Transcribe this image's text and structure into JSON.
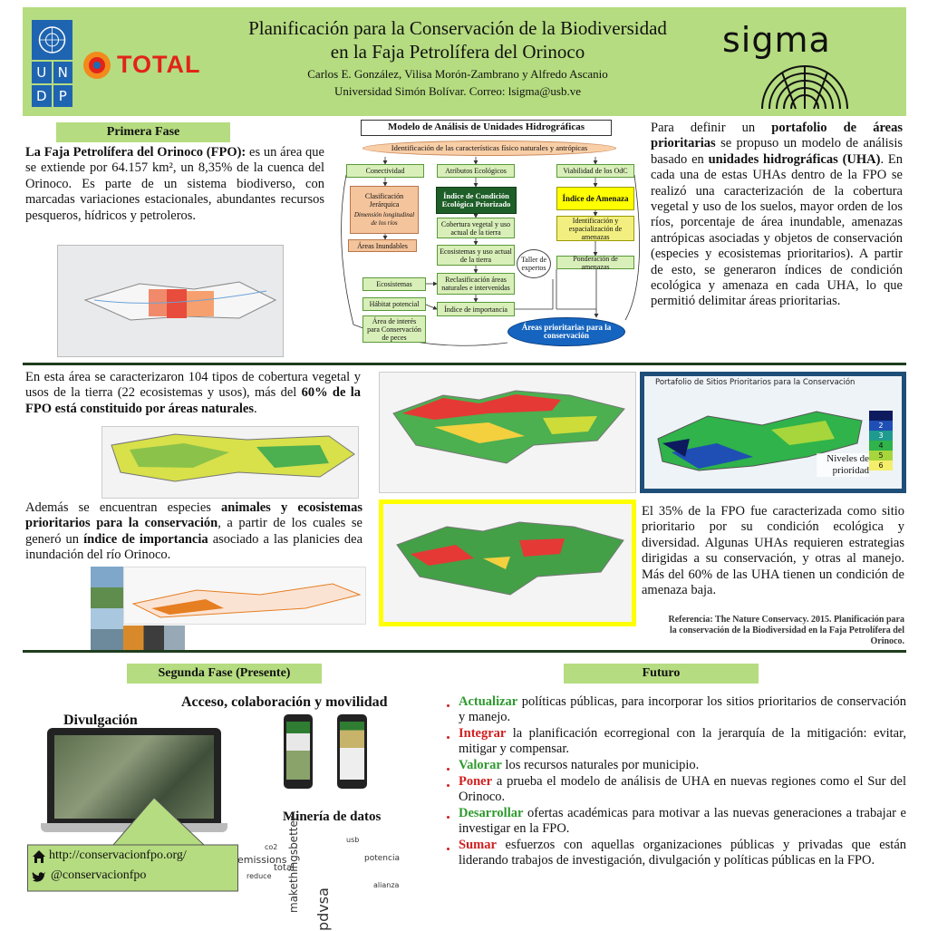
{
  "header": {
    "title_line1": "Planificación para la Conservación de la Biodiversidad",
    "title_line2": "en la Faja Petrolífera del Orinoco",
    "authors": "Carlos E. González, Vilisa Morón-Zambrano y Alfredo Ascanio",
    "affiliation": "Universidad Simón Bolívar. Correo: lsigma@usb.ve"
  },
  "logos": {
    "undp": [
      "U",
      "N",
      "D",
      "P"
    ],
    "total": "TOTAL",
    "sigma": "sigma"
  },
  "primera_fase": {
    "heading": "Primera Fase",
    "paragraph": [
      {
        "text": "La Faja Petrolífera del Orinoco (FPO):",
        "bold": true
      },
      {
        "text": " es un área que se extiende por 64.157 km², un 8,35% de la cuenca del Orinoco. Es parte de un sistema biodiverso, con marcadas variaciones estacionales, abundantes recursos pesqueros, hídricos y petroleros.",
        "bold": false
      }
    ]
  },
  "diagram": {
    "title": "Modelo de Análisis de Unidades Hidrográficas",
    "nodes": [
      {
        "label": "Identificación de las características físico naturales y antrópicas"
      },
      {
        "label": "Conectividad"
      },
      {
        "label": "Atributos Ecológicos"
      },
      {
        "label": "Viabilidad de los OdC"
      },
      {
        "label": "Clasificación Jerárquica",
        "sublabel": "Dimensión longitudinal de los ríos"
      },
      {
        "label": "Áreas Inundables"
      },
      {
        "label": "Índice de Condición Ecológica Priorizado"
      },
      {
        "label": "Índice de Amenaza"
      },
      {
        "label": "Cobertura vegetal y uso actual de la tierra"
      },
      {
        "label": "Ecosistemas y uso actual de la tierra"
      },
      {
        "label": "Reclasificación áreas naturales e intervenidas"
      },
      {
        "label": "Índice de importancia"
      },
      {
        "label": "Identificación y espacialización de amenazas"
      },
      {
        "label": "Ponderación de amenazas"
      },
      {
        "label": "Taller de expertos"
      },
      {
        "label": "Ecosistemas"
      },
      {
        "label": "Hábitat potencial"
      },
      {
        "label": "Área de interés para Conservación de peces"
      },
      {
        "label": "Áreas prioritarias para la conservación"
      }
    ]
  },
  "portafolio_text": [
    {
      "text": "Para definir un ",
      "bold": false
    },
    {
      "text": "portafolio de áreas prioritarias",
      "bold": true
    },
    {
      "text": " se propuso un modelo de análisis basado en ",
      "bold": false
    },
    {
      "text": "unidades hidrográficas (UHA)",
      "bold": true
    },
    {
      "text": ". En cada una de estas UHAs dentro de la FPO se realizó una caracterización de la cobertura vegetal y uso de los suelos, mayor orden de los ríos, porcentaje de área inundable, amenazas antrópicas asociadas y objetos de conservación (especies y ecosistemas prioritarios). A partir de esto, se generaron índices de condición ecológica y amenaza en cada UHA, lo que permitió delimitar áreas prioritarias.",
      "bold": false
    }
  ],
  "cobertura_text": [
    {
      "text": "En esta área se caracterizaron 104 tipos de cobertura vegetal y usos de la tierra (22 ecosistemas y usos), más del ",
      "bold": false
    },
    {
      "text": "60% de la FPO está constituido por áreas naturales",
      "bold": true
    },
    {
      "text": ".",
      "bold": false
    }
  ],
  "especies_text": [
    {
      "text": "Además se encuentran especies ",
      "bold": false
    },
    {
      "text": "animales y ecosistemas prioritarios para la conservación",
      "bold": true
    },
    {
      "text": ", a partir de los cuales se generó un ",
      "bold": false
    },
    {
      "text": "índice de importancia",
      "bold": true
    },
    {
      "text": " asociado a las planicies dea inundación del río Orinoco.",
      "bold": false
    }
  ],
  "priority_map": {
    "title": "Portafolio de Sitios Prioritarios para la Conservación",
    "legend_title": "Niveles de prioridad",
    "legend": [
      {
        "color": "#0d1b5e"
      },
      {
        "label": "2",
        "color": "#1f4fb4"
      },
      {
        "label": "3",
        "color": "#1f9a8f"
      },
      {
        "label": "4",
        "color": "#2fb34a"
      },
      {
        "label": "5",
        "color": "#a6d63c"
      },
      {
        "label": "6",
        "color": "#f5ee6a"
      }
    ]
  },
  "resultado_text": "El 35% de la FPO fue caracterizada como sitio prioritario por su condición ecológica y diversidad. Algunas UHAs requieren estrategias dirigidas a su conservación, y otras al manejo.  Más del 60% de las UHA tienen un condición de amenaza baja.",
  "reference": "Referencia: The Nature Conservacy. 2015. Planificación para la conservación de la Biodiversidad en la Faja Petrolífera del Orinoco.",
  "segunda_fase": {
    "heading": "Segunda Fase (Presente)",
    "subheading": "Acceso, colaboración y movilidad",
    "divulgacion": "Divulgación",
    "mineria": "Minería de datos",
    "website": "http://conservacionfpo.org/",
    "twitter": "@conservacionfpo",
    "wordcloud": [
      "emissions",
      "makethingsbetter",
      "pdvsa",
      "total",
      "co2",
      "reduce",
      "potencia",
      "alianza",
      "usb"
    ]
  },
  "futuro": {
    "heading": "Futuro",
    "items": [
      {
        "verb": "Actualizar",
        "rest": " políticas públicas, para incorporar los sitios prioritarios de conservación y manejo.",
        "color": "#2e9a2e"
      },
      {
        "verb": "Integrar",
        "rest": " la planificación ecorregional con la jerarquía de la mitigación: evitar, mitigar y compensar.",
        "color": "#d01f1f"
      },
      {
        "verb": "Valorar",
        "rest": " los recursos naturales por municipio.",
        "color": "#2e9a2e"
      },
      {
        "verb": "Poner",
        "rest": "  a prueba el modelo de análisis de UHA en nuevas regiones como el Sur del Orinoco.",
        "color": "#d01f1f"
      },
      {
        "verb": "Desarrollar",
        "rest": " ofertas académicas para motivar a las nuevas generaciones a trabajar e investigar en la FPO.",
        "color": "#2e9a2e"
      },
      {
        "verb": "Sumar",
        "rest": " esfuerzos con aquellas organizaciones públicas y privadas que están liderando trabajos de investigación, divulgación y políticas públicas en la FPO.",
        "color": "#d01f1f"
      }
    ]
  }
}
